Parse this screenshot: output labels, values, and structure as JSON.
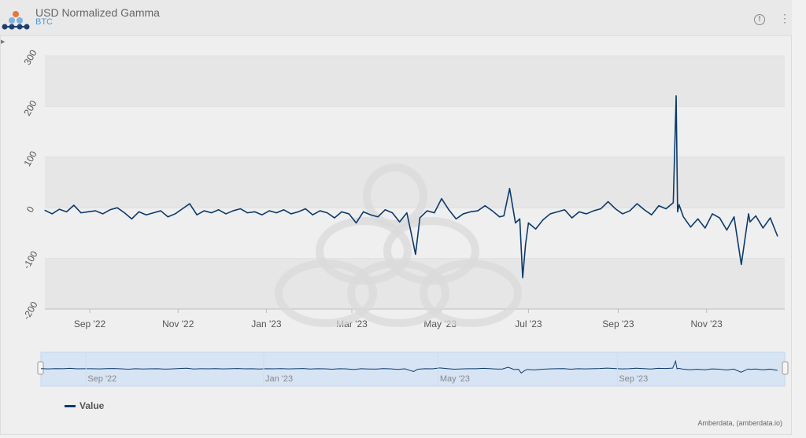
{
  "header": {
    "title": "USD Normalized Gamma",
    "subtitle": "BTC",
    "info_icon": "info-circle-icon",
    "menu_icon": "kebab-menu-icon"
  },
  "credit": "Amberdata, (amberdata.io)",
  "colors": {
    "series": "#0c3a6b",
    "subtitle": "#4a9ad8",
    "navigator_mask": "#d2e3f5"
  },
  "chart_data": {
    "type": "line",
    "title": "USD Normalized Gamma",
    "subtitle": "BTC",
    "ylim": [
      -200,
      300
    ],
    "yticks": [
      300,
      200,
      100,
      0,
      -100,
      -200
    ],
    "ytick_labels": [
      "300",
      "200",
      "100",
      "0",
      "-100",
      "-200"
    ],
    "x_range": [
      "2022-08-01",
      "2023-12-25"
    ],
    "xticks": [
      {
        "date": "2022-09-01",
        "label": "Sep '22"
      },
      {
        "date": "2022-11-01",
        "label": "Nov '22"
      },
      {
        "date": "2023-01-01",
        "label": "Jan '23"
      },
      {
        "date": "2023-03-01",
        "label": "Mar '23"
      },
      {
        "date": "2023-05-01",
        "label": "May '23"
      },
      {
        "date": "2023-07-01",
        "label": "Jul '23"
      },
      {
        "date": "2023-09-01",
        "label": "Sep '23"
      },
      {
        "date": "2023-11-01",
        "label": "Nov '23"
      }
    ],
    "navigator_ticks": [
      {
        "date": "2022-09-01",
        "label": "Sep '22"
      },
      {
        "date": "2023-01-01",
        "label": "Jan '23"
      },
      {
        "date": "2023-05-01",
        "label": "May '23"
      },
      {
        "date": "2023-09-01",
        "label": "Sep '23"
      }
    ],
    "grid": true,
    "legend_position": "bottom-left",
    "series": [
      {
        "name": "Value",
        "x": [
          "2022-08-01",
          "2022-08-06",
          "2022-08-11",
          "2022-08-16",
          "2022-08-21",
          "2022-08-26",
          "2022-08-31",
          "2022-09-05",
          "2022-09-10",
          "2022-09-15",
          "2022-09-20",
          "2022-09-25",
          "2022-09-30",
          "2022-10-05",
          "2022-10-10",
          "2022-10-15",
          "2022-10-20",
          "2022-10-25",
          "2022-10-30",
          "2022-11-04",
          "2022-11-09",
          "2022-11-14",
          "2022-11-19",
          "2022-11-24",
          "2022-11-29",
          "2022-12-04",
          "2022-12-09",
          "2022-12-14",
          "2022-12-19",
          "2022-12-24",
          "2022-12-29",
          "2023-01-03",
          "2023-01-08",
          "2023-01-13",
          "2023-01-18",
          "2023-01-23",
          "2023-01-28",
          "2023-02-02",
          "2023-02-07",
          "2023-02-12",
          "2023-02-17",
          "2023-02-22",
          "2023-02-27",
          "2023-03-04",
          "2023-03-09",
          "2023-03-14",
          "2023-03-19",
          "2023-03-24",
          "2023-03-29",
          "2023-04-03",
          "2023-04-08",
          "2023-04-11",
          "2023-04-14",
          "2023-04-17",
          "2023-04-22",
          "2023-04-27",
          "2023-05-02",
          "2023-05-07",
          "2023-05-12",
          "2023-05-17",
          "2023-05-22",
          "2023-05-27",
          "2023-06-01",
          "2023-06-06",
          "2023-06-11",
          "2023-06-14",
          "2023-06-18",
          "2023-06-22",
          "2023-06-25",
          "2023-06-27",
          "2023-06-29",
          "2023-07-01",
          "2023-07-06",
          "2023-07-11",
          "2023-07-16",
          "2023-07-21",
          "2023-07-26",
          "2023-07-31",
          "2023-08-05",
          "2023-08-10",
          "2023-08-15",
          "2023-08-20",
          "2023-08-25",
          "2023-08-30",
          "2023-09-04",
          "2023-09-09",
          "2023-09-14",
          "2023-09-19",
          "2023-09-24",
          "2023-09-29",
          "2023-10-04",
          "2023-10-09",
          "2023-10-11",
          "2023-10-12",
          "2023-10-13",
          "2023-10-16",
          "2023-10-21",
          "2023-10-26",
          "2023-10-31",
          "2023-11-05",
          "2023-11-10",
          "2023-11-15",
          "2023-11-20",
          "2023-11-25",
          "2023-11-30",
          "2023-12-01",
          "2023-12-05",
          "2023-12-10",
          "2023-12-15",
          "2023-12-20"
        ],
        "values": [
          -5,
          -12,
          -3,
          -8,
          5,
          -10,
          -8,
          -6,
          -12,
          -4,
          0,
          -10,
          -22,
          -8,
          -14,
          -10,
          -6,
          -18,
          -12,
          -2,
          8,
          -14,
          -6,
          -10,
          -4,
          -12,
          -6,
          -2,
          -10,
          -8,
          -14,
          -6,
          -10,
          -4,
          -12,
          -8,
          -2,
          -14,
          -6,
          -10,
          -20,
          -8,
          -12,
          -30,
          -8,
          -14,
          -18,
          -4,
          -10,
          -28,
          -10,
          -50,
          -92,
          -20,
          -6,
          -10,
          18,
          -4,
          -22,
          -12,
          -8,
          -6,
          4,
          -6,
          -18,
          -16,
          38,
          -30,
          -22,
          -138,
          -72,
          -30,
          -42,
          -24,
          -12,
          -8,
          -4,
          -20,
          -8,
          -12,
          -6,
          -2,
          12,
          -2,
          -12,
          -6,
          8,
          -4,
          -14,
          4,
          -2,
          10,
          221,
          -8,
          6,
          -18,
          -38,
          -22,
          -40,
          -12,
          -20,
          -44,
          -18,
          -112,
          -12,
          -28,
          -16,
          -40,
          -20,
          -56
        ]
      }
    ]
  }
}
